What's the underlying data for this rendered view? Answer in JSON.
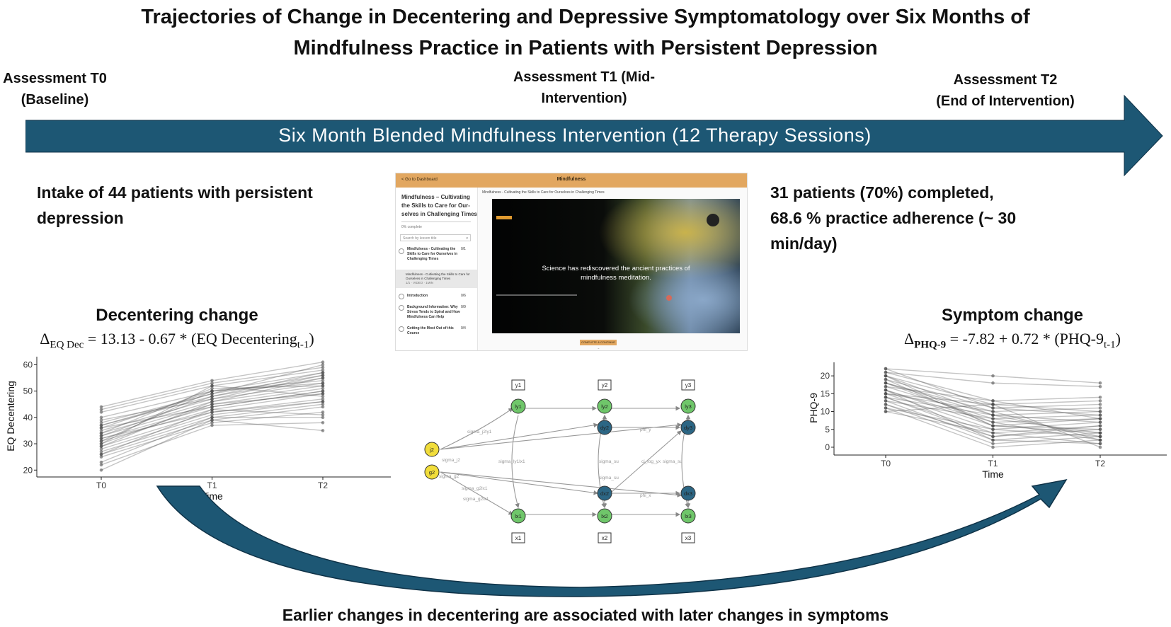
{
  "title": {
    "line1": "Trajectories of Change in Decentering and Depressive Symptomatology over Six Months of",
    "line2": "Mindfulness Practice in Patients with Persistent Depression"
  },
  "timeline": {
    "label": "Six Month Blended Mindfulness Intervention (12 Therapy Sessions)",
    "color": "#1d5774",
    "t0": {
      "line1": "Assessment T0",
      "line2": "(Baseline)"
    },
    "t1": {
      "line1": "Assessment T1 (Mid-",
      "line2": "Intervention)"
    },
    "t2": {
      "line1": "Assessment T2",
      "line2": "(End of Intervention)"
    }
  },
  "intake": {
    "line1": "Intake of 44 patients with persistent",
    "line2": "depression"
  },
  "completion": {
    "line1": "31 patients (70%) completed,",
    "line2": "68.6 % practice adherence (~ 30",
    "line3": "min/day)"
  },
  "screenshot": {
    "header": "Mindfulness",
    "back_link": "< Go to Dashboard",
    "course_title_1": "Mindfulness – Cultivating",
    "course_title_2": "the Skills to Care for Our-",
    "course_title_3": "selves in Challenging Times",
    "progress": "0% complete",
    "search_placeholder": "Search by lesson title",
    "lesson_1a": "Mindfulness - Cultivating the",
    "lesson_1b": "Skills to Care for Ourselves in",
    "lesson_1c": "Challenging Times",
    "lesson_1_count": "0/1",
    "sublesson_a": "Mindfulness - Cultivating the Skills to Care for",
    "sublesson_b": "Ourselves in Challenging Times",
    "sublesson_c": "1/1 · VIDEO · 1MIN",
    "lesson_2": "Introduction",
    "lesson_2_count": "0/6",
    "lesson_3a": "Background Information: Why",
    "lesson_3b": "Stress Tends to Spiral and How",
    "lesson_3c": "Mindfulness Can Help",
    "lesson_3_count": "0/9",
    "lesson_4a": "Getting the Most Out of this",
    "lesson_4b": "Course",
    "lesson_4_count": "0/4",
    "video_header": "Mindfulness - Cultivating the Skills to Care for Ourselves in Challenging Times",
    "video_caption_1": "Science has rediscovered the ancient practices of",
    "video_caption_2": "mindfulness meditation.",
    "complete_button": "COMPLETE & CONTINUE →"
  },
  "decentering": {
    "heading": "Decentering change",
    "formula_delta": "Δ",
    "formula_sub": "EQ Dec",
    "formula_main": " = 13.13 - 0.67 * (EQ Decentering",
    "formula_tsub": "t-1",
    "formula_end": ")"
  },
  "symptom": {
    "heading": "Symptom change",
    "formula_delta": "Δ",
    "formula_sub": "PHQ-9",
    "formula_main": " = -7.82 + 0.72 * (PHQ-9",
    "formula_tsub": "t-1",
    "formula_end": ")"
  },
  "bottom_text": "Earlier changes in decentering are associated with later changes in symptoms",
  "chart_data": [
    {
      "type": "line",
      "xlabel": "Time",
      "ylabel": "EQ Decentering",
      "x": [
        "T0",
        "T1",
        "T2"
      ],
      "ylim": [
        19,
        62
      ],
      "yticks": [
        20,
        30,
        40,
        50,
        60
      ],
      "series": [
        {
          "values": [
            44,
            54,
            61
          ]
        },
        {
          "values": [
            43,
            53,
            59
          ]
        },
        {
          "values": [
            42,
            52,
            58
          ]
        },
        {
          "values": [
            40,
            50,
            57
          ]
        },
        {
          "values": [
            38,
            49,
            56
          ]
        },
        {
          "values": [
            37,
            48,
            55
          ]
        },
        {
          "values": [
            36,
            50,
            54
          ]
        },
        {
          "values": [
            35,
            47,
            53
          ]
        },
        {
          "values": [
            34,
            46,
            52
          ]
        },
        {
          "values": [
            33,
            45,
            51
          ]
        },
        {
          "values": [
            32,
            44,
            50
          ]
        },
        {
          "values": [
            31,
            43,
            49
          ]
        },
        {
          "values": [
            30,
            52,
            48
          ]
        },
        {
          "values": [
            29,
            42,
            47
          ]
        },
        {
          "values": [
            28,
            41,
            46
          ]
        },
        {
          "values": [
            27,
            40,
            45
          ]
        },
        {
          "values": [
            26,
            39,
            44
          ]
        },
        {
          "values": [
            25,
            38,
            42
          ]
        },
        {
          "values": [
            23,
            40,
            40
          ]
        },
        {
          "values": [
            22,
            37,
            38
          ]
        },
        {
          "values": [
            20,
            39,
            35
          ]
        },
        {
          "values": [
            33,
            48,
            57
          ]
        },
        {
          "values": [
            31,
            50,
            53
          ]
        },
        {
          "values": [
            36,
            44,
            50
          ]
        },
        {
          "values": [
            29,
            46,
            55
          ]
        },
        {
          "values": [
            34,
            51,
            52
          ]
        },
        {
          "values": [
            39,
            47,
            56
          ]
        },
        {
          "values": [
            26,
            43,
            41
          ]
        },
        {
          "values": [
            30,
            45,
            49
          ]
        },
        {
          "values": [
            37,
            49,
            60
          ]
        },
        {
          "values": [
            32,
            42,
            46
          ]
        }
      ]
    },
    {
      "type": "line",
      "xlabel": "Time",
      "ylabel": "PHQ-9",
      "x": [
        "T0",
        "T1",
        "T2"
      ],
      "ylim": [
        -1,
        23
      ],
      "yticks": [
        0,
        5,
        10,
        15,
        20
      ],
      "series": [
        {
          "values": [
            22,
            20,
            18
          ]
        },
        {
          "values": [
            21,
            18,
            17
          ]
        },
        {
          "values": [
            21,
            13,
            14
          ]
        },
        {
          "values": [
            20,
            12,
            13
          ]
        },
        {
          "values": [
            19,
            11,
            12
          ]
        },
        {
          "values": [
            18,
            10,
            11
          ]
        },
        {
          "values": [
            18,
            9,
            10
          ]
        },
        {
          "values": [
            17,
            8,
            9
          ]
        },
        {
          "values": [
            16,
            7,
            8
          ]
        },
        {
          "values": [
            16,
            6,
            8
          ]
        },
        {
          "values": [
            15,
            5,
            7
          ]
        },
        {
          "values": [
            14,
            4,
            6
          ]
        },
        {
          "values": [
            14,
            3,
            5
          ]
        },
        {
          "values": [
            13,
            2,
            4
          ]
        },
        {
          "values": [
            12,
            1,
            3
          ]
        },
        {
          "values": [
            11,
            0,
            2
          ]
        },
        {
          "values": [
            10,
            4,
            1
          ]
        },
        {
          "values": [
            10,
            12,
            0
          ]
        },
        {
          "values": [
            20,
            9,
            3
          ]
        },
        {
          "values": [
            19,
            6,
            5
          ]
        },
        {
          "values": [
            17,
            13,
            8
          ]
        },
        {
          "values": [
            15,
            10,
            2
          ]
        },
        {
          "values": [
            13,
            8,
            4
          ]
        },
        {
          "values": [
            12,
            3,
            6
          ]
        },
        {
          "values": [
            18,
            7,
            2
          ]
        },
        {
          "values": [
            22,
            11,
            9
          ]
        },
        {
          "values": [
            16,
            2,
            1
          ]
        },
        {
          "values": [
            14,
            9,
            7
          ]
        },
        {
          "values": [
            11,
            5,
            3
          ]
        },
        {
          "values": [
            20,
            6,
            4
          ]
        },
        {
          "values": [
            15,
            12,
            10
          ]
        }
      ]
    }
  ],
  "path_model": {
    "observed_y": [
      "y1",
      "y2",
      "y3"
    ],
    "observed_x": [
      "x1",
      "x2",
      "x3"
    ],
    "latent_y": [
      "ly1",
      "ly2",
      "ly3"
    ],
    "latent_x": [
      "lx1",
      "lx2",
      "lx3"
    ],
    "change_y": [
      "dy2",
      "dy3"
    ],
    "change_x": [
      "dx2",
      "dx3"
    ],
    "global": [
      "j2",
      "g2"
    ],
    "edge_labels": [
      "sigma_j2ly1",
      "sigma_j2",
      "sigma_g2",
      "sigma_g2lx1",
      "sigma_g2lx1",
      "sigma_ly1lx1",
      "sigma_su",
      "sigma_su",
      "phi_y",
      "phi_x",
      "ci_log_yx",
      "sigma_su"
    ]
  }
}
